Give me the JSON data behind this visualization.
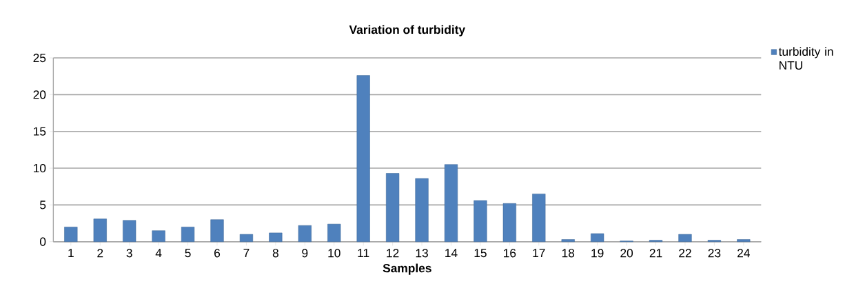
{
  "chart_data": {
    "type": "bar",
    "title": "Variation of turbidity",
    "xlabel": "Samples",
    "categories": [
      "1",
      "2",
      "3",
      "4",
      "5",
      "6",
      "7",
      "8",
      "9",
      "10",
      "11",
      "12",
      "13",
      "14",
      "15",
      "16",
      "17",
      "18",
      "19",
      "20",
      "21",
      "22",
      "23",
      "24"
    ],
    "series": [
      {
        "name": "turbidity in NTU",
        "color": "#4f81bd",
        "values": [
          2.0,
          3.1,
          2.9,
          1.5,
          2.0,
          3.0,
          1.0,
          1.2,
          2.2,
          2.4,
          22.6,
          9.3,
          8.6,
          10.5,
          5.6,
          5.2,
          6.5,
          0.3,
          1.1,
          0.1,
          0.2,
          1.0,
          0.2,
          0.3
        ]
      }
    ],
    "ylim": [
      0,
      25
    ],
    "yticks": [
      0,
      5,
      10,
      15,
      20,
      25
    ],
    "grid": "y",
    "legend": "top right"
  }
}
